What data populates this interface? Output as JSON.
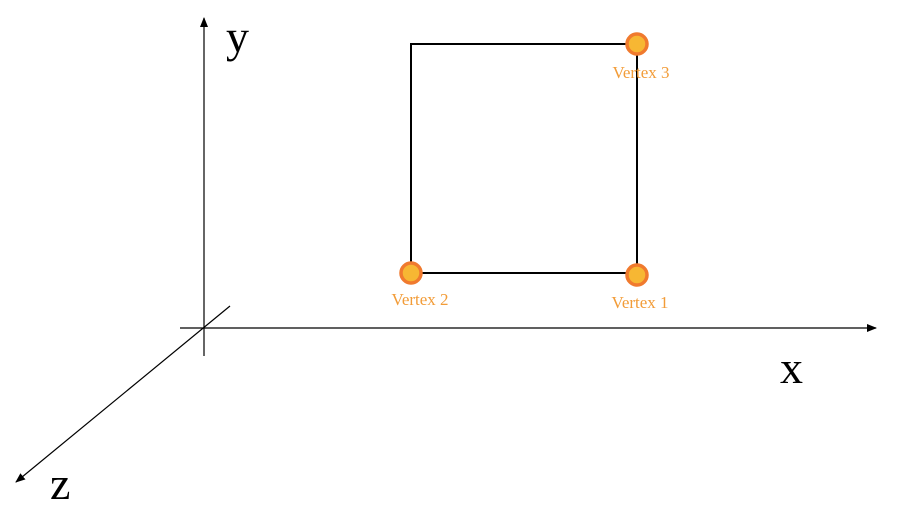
{
  "axes": {
    "x_label": "x",
    "y_label": "y",
    "z_label": "z"
  },
  "vertices": [
    {
      "label": "Vertex 1"
    },
    {
      "label": "Vertex 2"
    },
    {
      "label": "Vertex 3"
    }
  ],
  "colors": {
    "axis": "#000000",
    "square": "#000000",
    "vertex_fill": "#F7B733",
    "vertex_stroke": "#F07A2E",
    "vertex_label": "#F29C38"
  }
}
